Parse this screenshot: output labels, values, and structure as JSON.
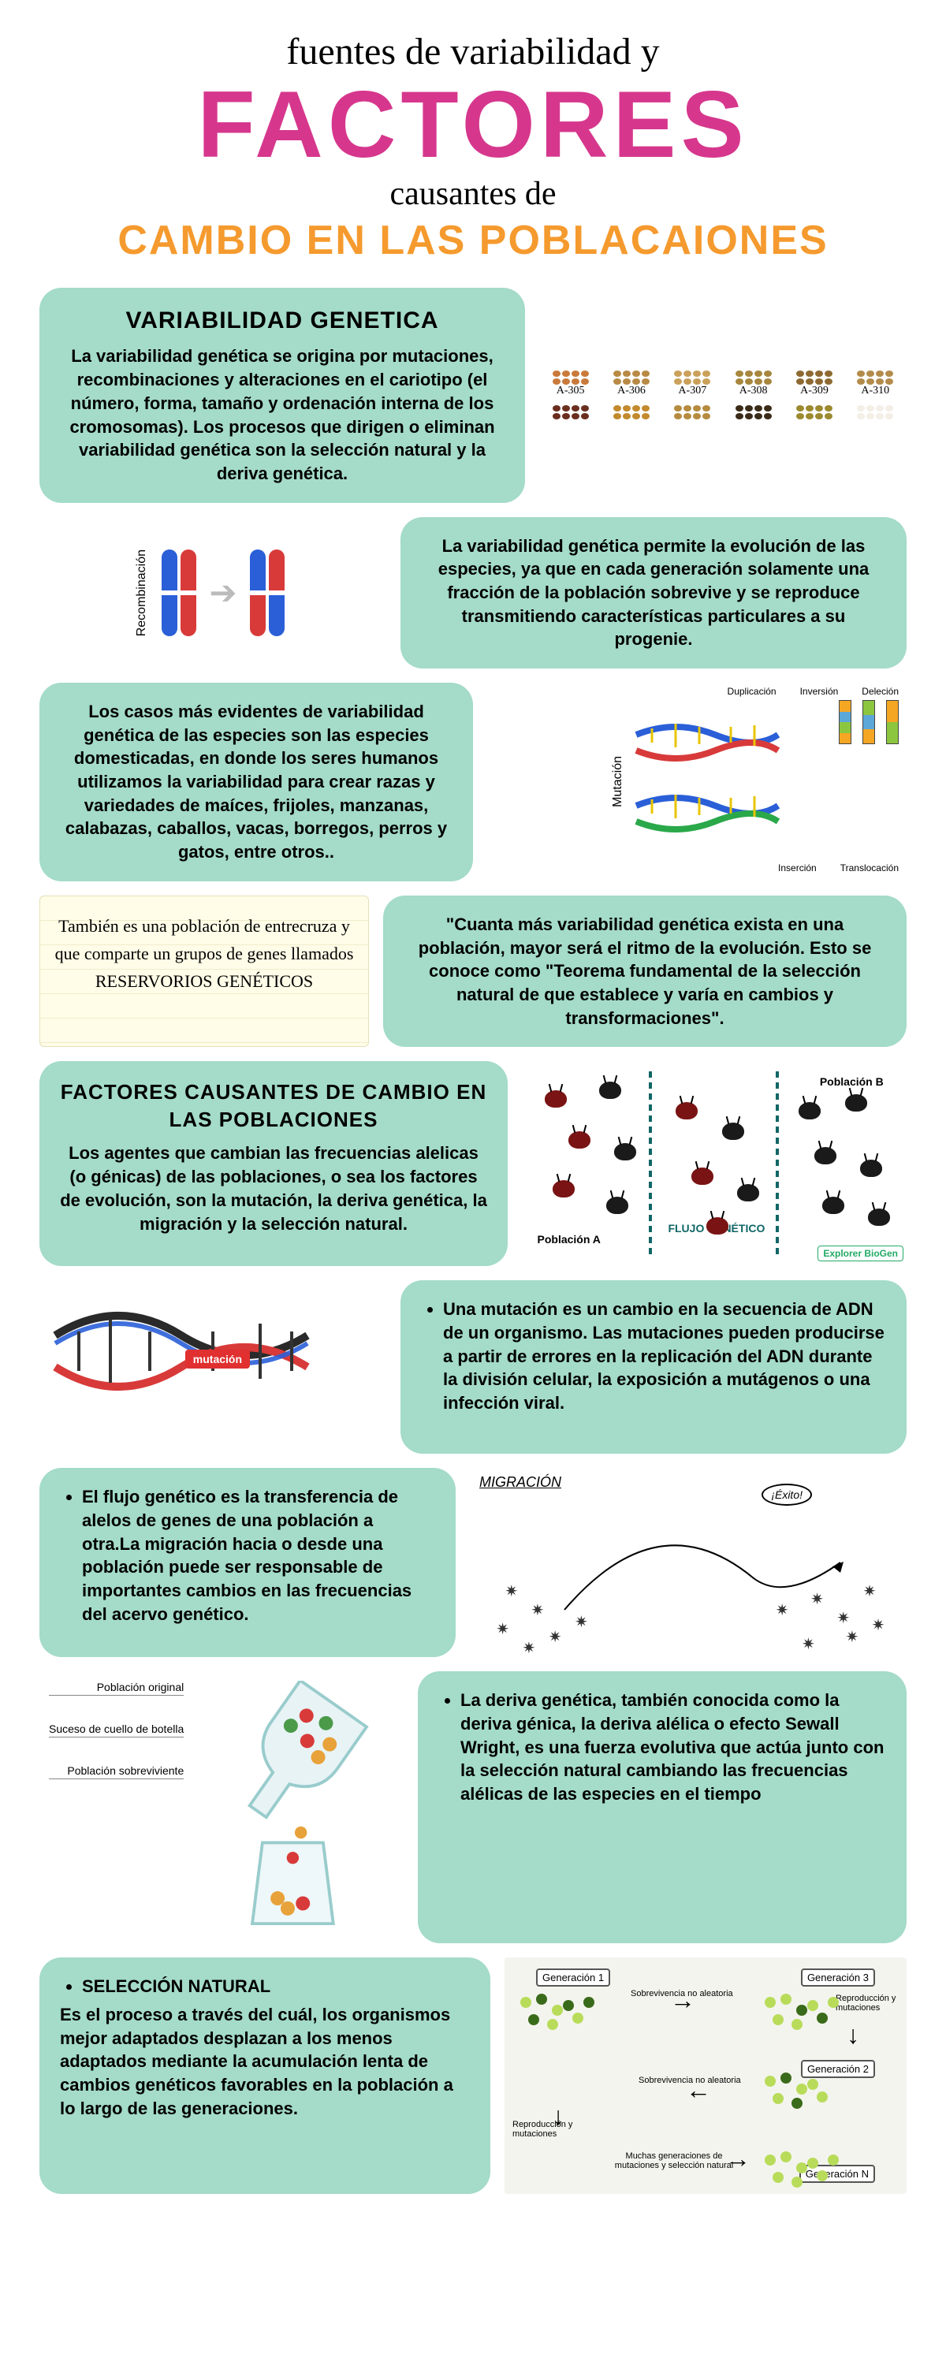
{
  "colors": {
    "mint": "#a4dbc9",
    "pink": "#d6378d",
    "orange": "#f59a2e",
    "text": "#000000",
    "card_radius": 28
  },
  "header": {
    "line1": "fuentes de variabilidad y",
    "big": "FACTORES",
    "line2": "causantes de",
    "orange": "CAMBIO EN LAS POBLACAIONES"
  },
  "seeds": {
    "labels": [
      "A-305",
      "A-306",
      "A-307",
      "A-308",
      "A-309",
      "A-310"
    ],
    "row1_colors": [
      "#c97a3b",
      "#b88a46",
      "#caa15a",
      "#a7863e",
      "#8e6a32",
      "#b38b4a"
    ],
    "row2_colors": [
      "#6b2e1e",
      "#c28a2d",
      "#b58b3f",
      "#3a2a18",
      "#9c8a2f",
      "#f3efe6"
    ]
  },
  "card1": {
    "title": "VARIABILIDAD GENETICA",
    "body": "La variabilidad genética se origina por mutaciones, recombinaciones y alteraciones en el cariotipo (el número, forma, tamaño y ordenación interna de los cromosomas). Los procesos que dirigen o eliminan variabilidad genética son la selección natural y la deriva genética."
  },
  "recomb_label": "Recombinación",
  "card2": "La variabilidad genética permite la evolución de las especies, ya que en cada generación solamente una fracción de la población sobrevive y se reproduce transmitiendo características particulares a su progenie.",
  "card3": "Los casos más evidentes de variabilidad genética de las especies son las especies domesticadas, en donde los seres humanos utilizamos la variabilidad para crear razas y variedades de maíces, frijoles, manzanas, calabazas, caballos, vacas, borregos, perros y gatos, entre otros..",
  "mut_label": "Mutación",
  "mut_types": [
    "Duplicación",
    "Inversión",
    "Deleción",
    "Inserción",
    "Translocación"
  ],
  "notepad": "También es una población de entrecruza y que comparte un grupos de genes llamados RESERVORIOS GENÉTICOS",
  "card4": "\"Cuanta más variabilidad genética exista en una población, mayor será el ritmo de la evolución. Esto se conoce como \"Teorema fundamental de la selección natural de que establece y varía en cambios y transformaciones\".",
  "card5": {
    "title": "FACTORES CAUSANTES DE CAMBIO EN LAS POBLACIONES",
    "body": "Los agentes que cambian las frecuencias alelicas (o génicas) de las poblaciones, o sea los factores de evolución, son la mutación, la deriva genética, la migración y la selección natural."
  },
  "beetles": {
    "popA": "Población A",
    "popB": "Población B",
    "flow": "FLUJO GENÉTICO",
    "credit": "Explorer BioGen",
    "colors": [
      "#7a1414",
      "#1a1a1a",
      "#7a1414",
      "#1a1a1a"
    ]
  },
  "mutacion_tag": "mutación",
  "card6": "Una mutación es un cambio en la secuencia de ADN de un organismo. Las mutaciones pueden producirse a partir de errores en la replicación del ADN durante la división celular, la exposición a mutágenos o una infección viral.",
  "card7": "El flujo genético es la transferencia de alelos de genes de una población a otra.La migración hacia o desde una población puede ser responsable de importantes cambios en las frecuencias del acervo genético.",
  "migracion": {
    "label": "MIGRACIÓN",
    "bubble": "¡Éxito!"
  },
  "bottleneck": {
    "l1": "Población original",
    "l2": "Suceso de cuello de botella",
    "l3": "Población sobreviviente"
  },
  "card8": "La deriva genética, también conocida como la deriva génica, la deriva alélica o efecto Sewall Wright, es una fuerza evolutiva que actúa junto con la selección natural cambiando las frecuencias alélicas de las especies en el tiempo",
  "card9": {
    "title": "SELECCIÓN NATURAL",
    "body": "Es el proceso a través del cuál, los organismos mejor adaptados desplazan a los menos adaptados mediante la acumulación lenta de cambios genéticos favorables en la población a lo largo de las generaciones."
  },
  "generations": {
    "g1": "Generación 1",
    "g2": "Generación 2",
    "g3": "Generación 3",
    "gN": "Generación N",
    "a1": "Sobrevivencia no aleatoria",
    "a2": "Reproducción y mutaciones",
    "a3": "Sobrevivencia no aleatoria",
    "a4": "Reproducción y mutaciones",
    "mid": "Muchas generaciones de mutaciones y selección natural",
    "light": "#b8dc5a",
    "dark": "#3a6b1a"
  }
}
